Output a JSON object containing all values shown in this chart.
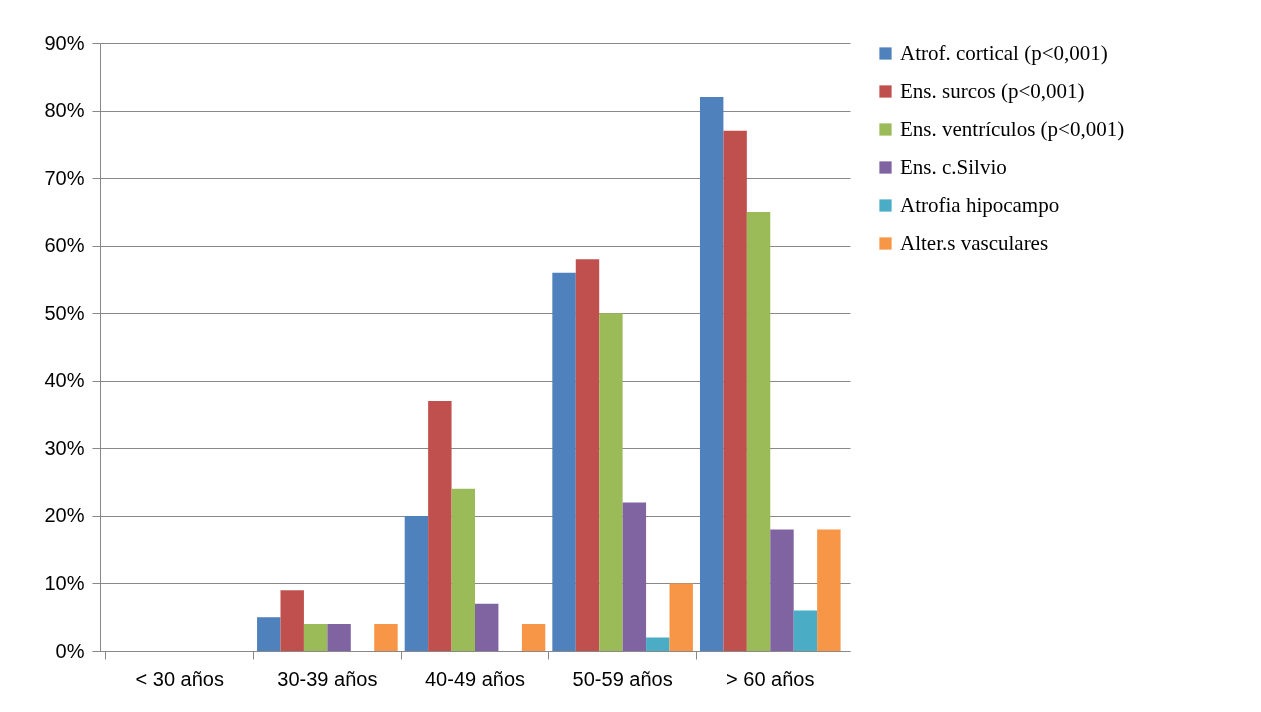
{
  "chart_data": {
    "type": "bar",
    "categories": [
      "< 30 años",
      "30-39 años",
      "40-49 años",
      "50-59 años",
      "> 60 años"
    ],
    "series": [
      {
        "name": "Atrof. cortical (p<0,001)",
        "color": "#4f81bd",
        "values": [
          0,
          5,
          20,
          56,
          82
        ]
      },
      {
        "name": "Ens. surcos (p<0,001)",
        "color": "#c0504d",
        "values": [
          0,
          9,
          37,
          58,
          77
        ]
      },
      {
        "name": "Ens. ventrículos (p<0,001)",
        "color": "#9bbb59",
        "values": [
          0,
          4,
          24,
          50,
          65
        ]
      },
      {
        "name": "Ens. c.Silvio",
        "color": "#8064a2",
        "values": [
          0,
          4,
          7,
          22,
          18
        ]
      },
      {
        "name": "Atrofia hipocampo",
        "color": "#4bacc6",
        "values": [
          0,
          0,
          0,
          2,
          6
        ]
      },
      {
        "name": "Alter.s vasculares",
        "color": "#f79646",
        "values": [
          0,
          4,
          4,
          10,
          18
        ]
      }
    ],
    "ylim": [
      0,
      90
    ],
    "yticks": [
      {
        "value": 0,
        "label": "0%"
      },
      {
        "value": 10,
        "label": "10%"
      },
      {
        "value": 20,
        "label": "20%"
      },
      {
        "value": 30,
        "label": "30%"
      },
      {
        "value": 40,
        "label": "40%"
      },
      {
        "value": 50,
        "label": "50%"
      },
      {
        "value": 60,
        "label": "60%"
      },
      {
        "value": 70,
        "label": "70%"
      },
      {
        "value": 80,
        "label": "80%"
      },
      {
        "value": 90,
        "label": "90%"
      }
    ],
    "grid": "y",
    "legend": "right"
  }
}
